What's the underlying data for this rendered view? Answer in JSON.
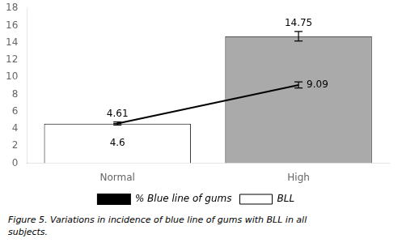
{
  "chart_data": {
    "type": "bar",
    "categories": [
      "Normal",
      "High"
    ],
    "series": [
      {
        "name": "BLL",
        "type": "bar",
        "colors": [
          "#ffffff",
          "#aaaaaa"
        ],
        "values": [
          4.6,
          14.75
        ],
        "errors": [
          0.0,
          0.55
        ]
      },
      {
        "name": "% Blue line of gums",
        "type": "line",
        "color": "#000000",
        "marker": "none",
        "values": [
          4.61,
          9.09
        ],
        "errors": [
          0.18,
          0.35
        ]
      }
    ],
    "ylim": [
      0,
      18
    ],
    "yticks": [
      0,
      2,
      4,
      6,
      8,
      10,
      12,
      14,
      16,
      18
    ],
    "grid": false,
    "legend": "bottom",
    "data_labels": true,
    "caption": "Figure 5. Variations in incidence of blue line of gums with BLL in all\nsubjects."
  }
}
